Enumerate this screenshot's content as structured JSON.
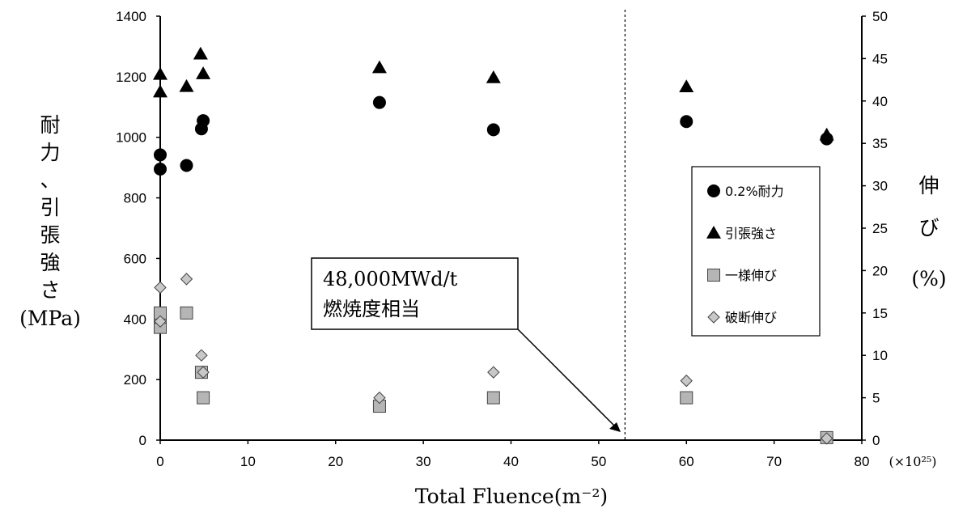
{
  "chart_data": {
    "type": "scatter",
    "xlabel": "Total Fluence(m⁻²)",
    "x_unit": "(×10²⁵)",
    "ylabel_left_chars": [
      "耐",
      "力",
      "、",
      "引",
      "張",
      "強",
      "さ"
    ],
    "ylabel_left_unit": "(MPa)",
    "ylabel_right_chars": [
      "伸",
      "び"
    ],
    "ylabel_right_unit": "(%)",
    "xlim": [
      0,
      80
    ],
    "ylim_left": [
      0,
      1400
    ],
    "ylim_right": [
      0,
      50
    ],
    "x_ticks": [
      "0",
      "10",
      "20",
      "30",
      "40",
      "50",
      "60",
      "70",
      "80"
    ],
    "y_left_ticks": [
      "0",
      "200",
      "400",
      "600",
      "800",
      "1000",
      "1200",
      "1400"
    ],
    "y_right_ticks": [
      "0",
      "5",
      "10",
      "15",
      "20",
      "25",
      "30",
      "35",
      "40",
      "45",
      "50"
    ],
    "grid": false,
    "legend_position": "right",
    "reference_line_x": 53,
    "annotation": {
      "line1": "48,000MWd/t",
      "line2": "燃焼度相当"
    },
    "series": [
      {
        "name": "0.2%耐力",
        "axis": "left",
        "marker": "circle",
        "color": "#000000",
        "points": [
          [
            0,
            895
          ],
          [
            0,
            942
          ],
          [
            3,
            907
          ],
          [
            4.7,
            1028
          ],
          [
            4.9,
            1055
          ],
          [
            25,
            1115
          ],
          [
            38,
            1025
          ],
          [
            60,
            1052
          ],
          [
            76,
            995
          ]
        ]
      },
      {
        "name": "引張強さ",
        "axis": "left",
        "marker": "triangle",
        "color": "#000000",
        "points": [
          [
            0,
            1150
          ],
          [
            0,
            1208
          ],
          [
            3,
            1168
          ],
          [
            4.6,
            1275
          ],
          [
            4.9,
            1210
          ],
          [
            25,
            1230
          ],
          [
            38,
            1197
          ],
          [
            60,
            1167
          ],
          [
            76,
            1008
          ]
        ]
      },
      {
        "name": "一様伸び",
        "axis": "right",
        "marker": "square",
        "color": "#b5b5b5",
        "points": [
          [
            0,
            13.3
          ],
          [
            0,
            14.5
          ],
          [
            0,
            15.0
          ],
          [
            3,
            15.0
          ],
          [
            4.7,
            8.0
          ],
          [
            4.9,
            5.0
          ],
          [
            25,
            4.0
          ],
          [
            38,
            5.0
          ],
          [
            60,
            5.0
          ],
          [
            76,
            0.3
          ]
        ]
      },
      {
        "name": "破断伸び",
        "axis": "right",
        "marker": "diamond",
        "color": "#c8c8c8",
        "points": [
          [
            0,
            18.0
          ],
          [
            0,
            14.0
          ],
          [
            3,
            19.0
          ],
          [
            4.7,
            10.0
          ],
          [
            4.9,
            8.0
          ],
          [
            25,
            5.0
          ],
          [
            38,
            8.0
          ],
          [
            60,
            7.0
          ],
          [
            76,
            0.2
          ]
        ]
      }
    ]
  }
}
